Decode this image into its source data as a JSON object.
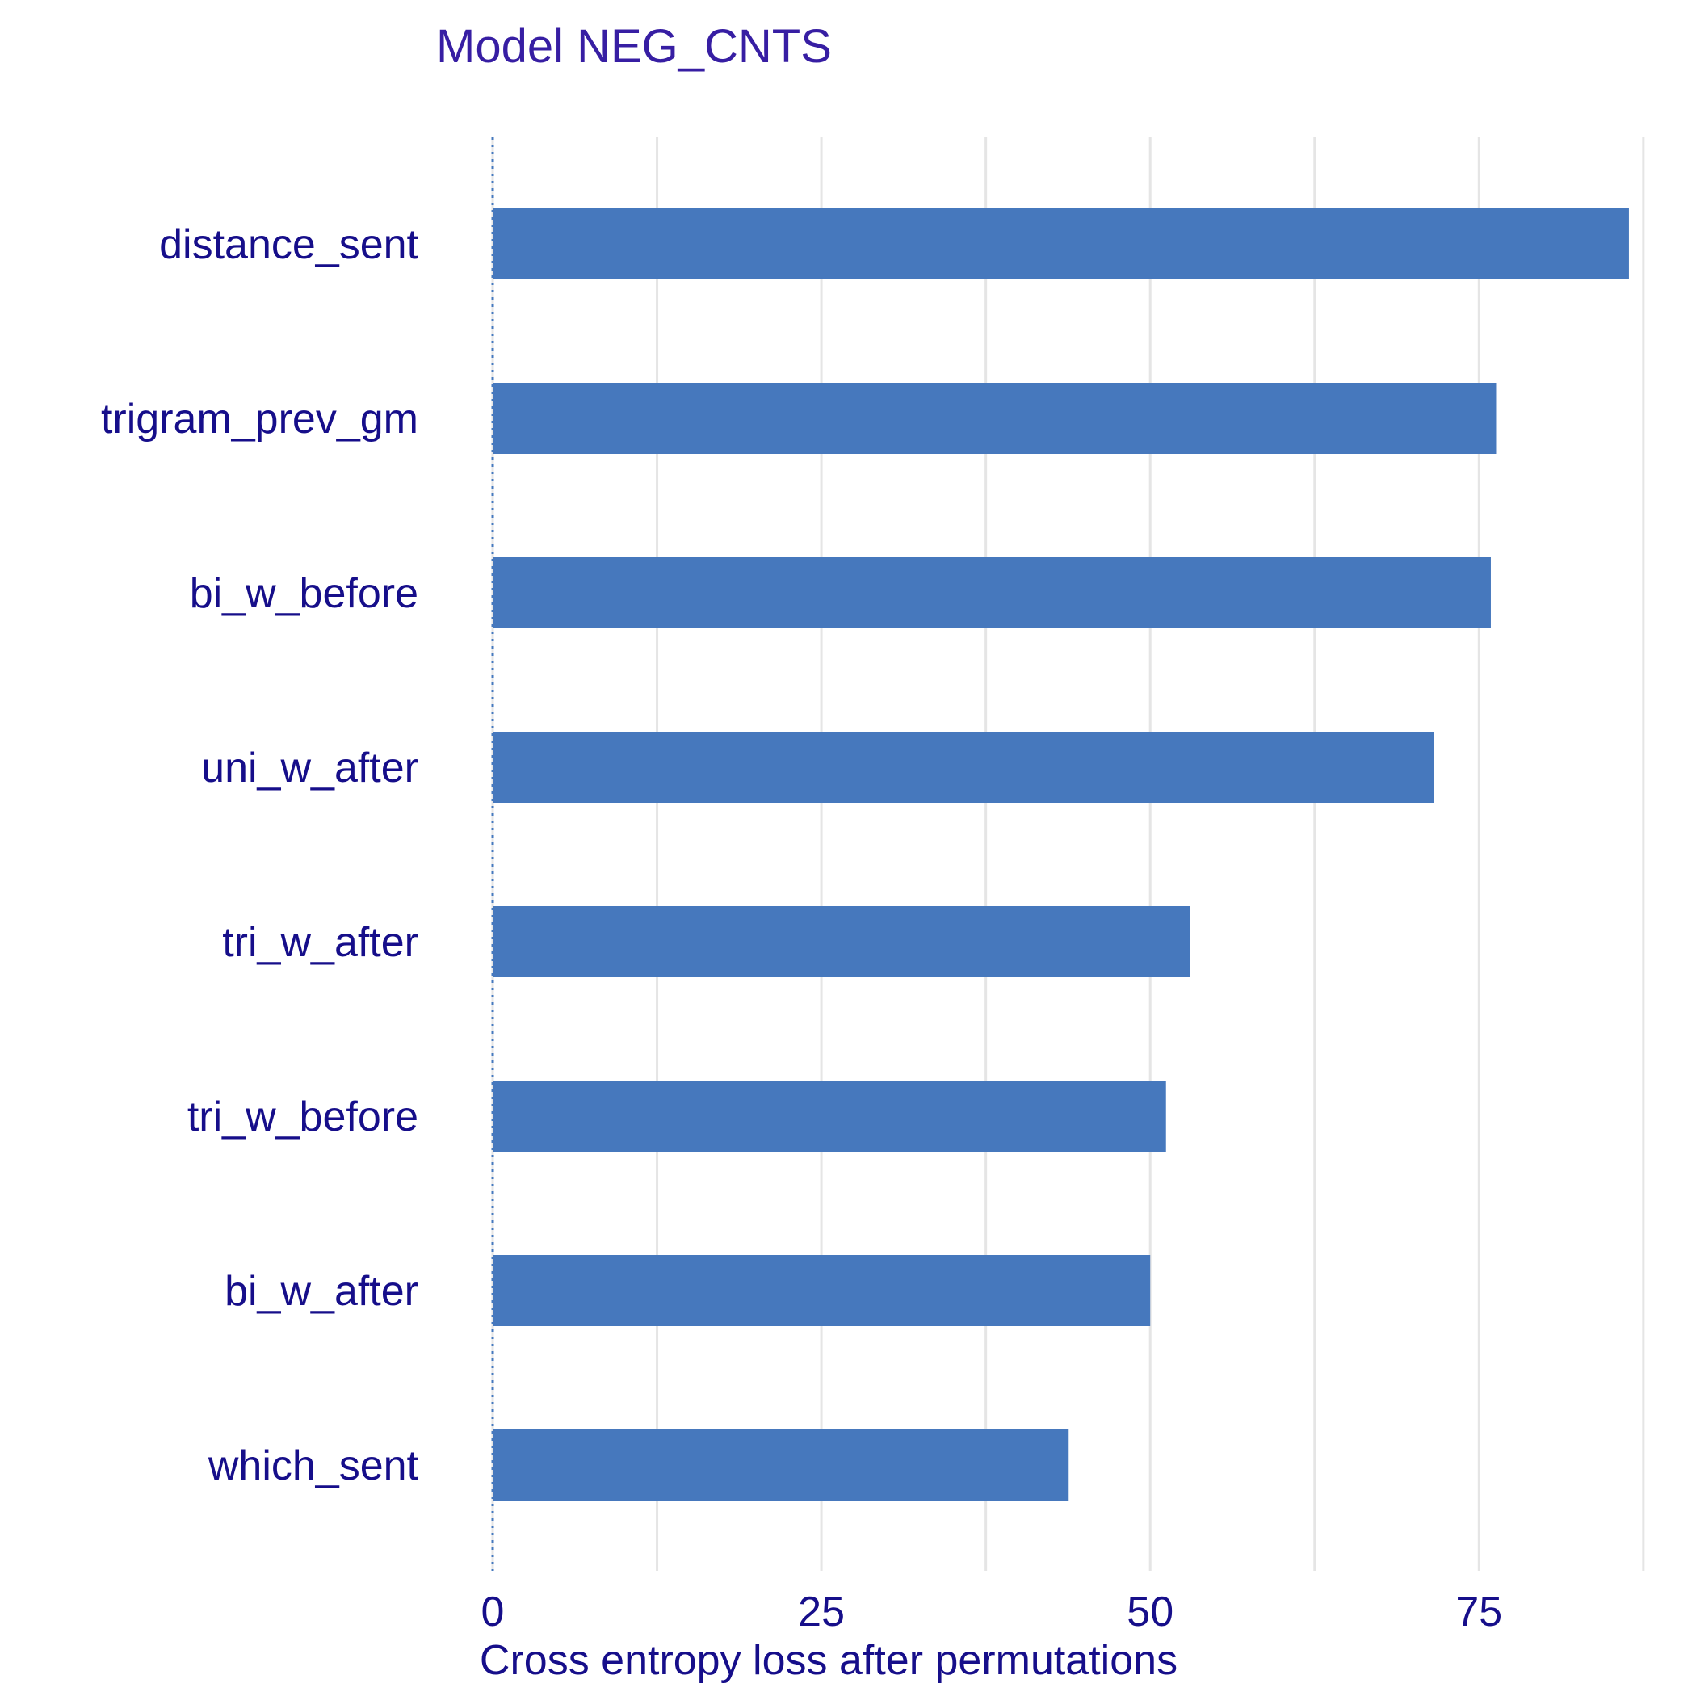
{
  "chart_data": {
    "type": "bar",
    "orientation": "horizontal",
    "title": "Model NEG_CNTS",
    "xlabel": "Cross entropy loss after permutations",
    "ylabel": "",
    "categories": [
      "distance_sent",
      "trigram_prev_gm",
      "bi_w_before",
      "uni_w_after",
      "tri_w_after",
      "tri_w_before",
      "bi_w_after",
      "which_sent"
    ],
    "values": [
      86.4,
      76.3,
      75.9,
      71.6,
      53.0,
      51.2,
      50.0,
      43.8
    ],
    "xlim": [
      0,
      88
    ],
    "xticks": [
      0,
      25,
      50,
      75
    ],
    "xtick_labels": [
      "0",
      "25",
      "50",
      "75"
    ],
    "baseline": 0,
    "grid": true,
    "colors": {
      "bar": "#4678BD",
      "title": "#371EA3",
      "text": "#160E8A",
      "grid": "#E5E5E5",
      "baseline": "#4678BD"
    }
  }
}
